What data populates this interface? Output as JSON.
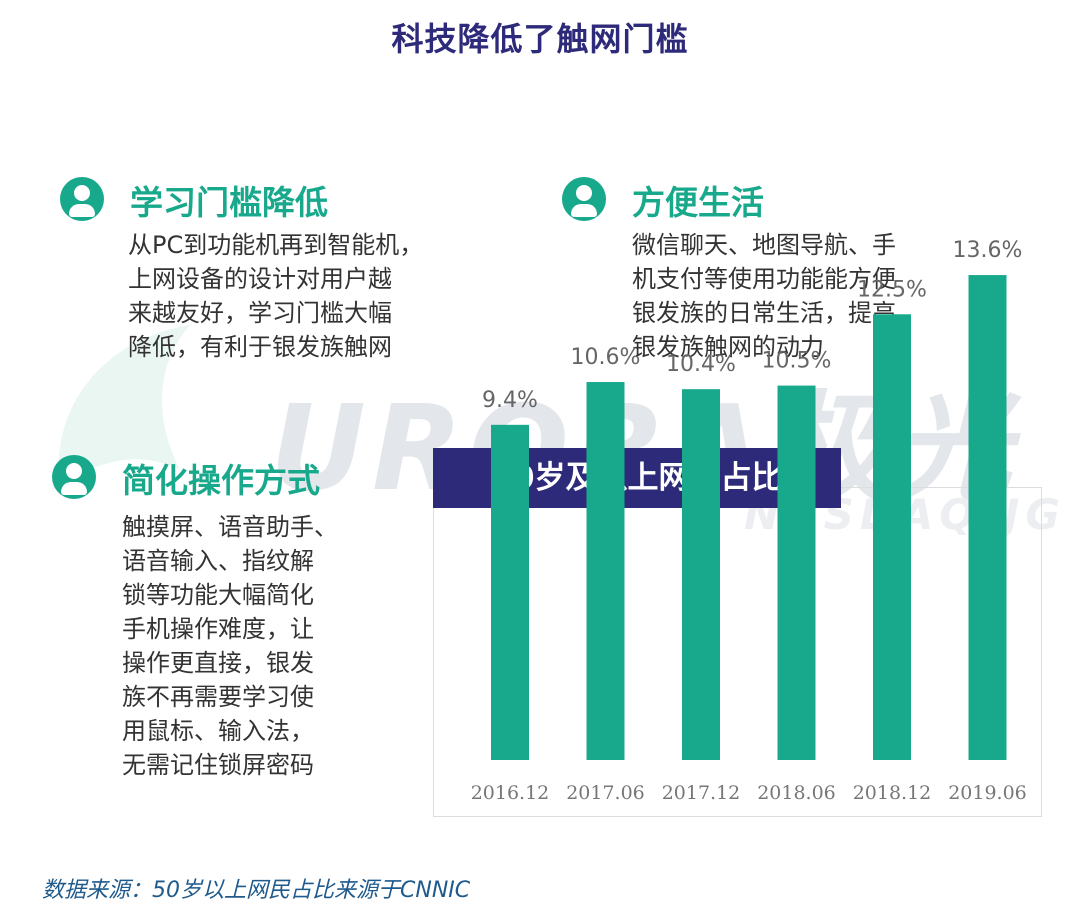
{
  "page": {
    "title": "科技降低了触网门槛",
    "source": "数据来源：50岁以上网民占比来源于CNNIC"
  },
  "watermark": {
    "text": "URORA极光",
    "sub": "NASDAQ:JG"
  },
  "sections": [
    {
      "heading": "学习门槛降低",
      "lines": [
        "从PC到功能机再到智能机，",
        "上网设备的设计对用户越",
        "来越友好，学习门槛大幅",
        "降低，有利于银发族触网"
      ]
    },
    {
      "heading": "方便生活",
      "lines": [
        "微信聊天、地图导航、手",
        "机支付等使用功能能方便",
        "银发族的日常生活，提高",
        "银发族触网的动力"
      ]
    },
    {
      "heading": "简化操作方式",
      "lines": [
        "触摸屏、语音助手、",
        "语音输入、指纹解",
        "锁等功能大幅简化",
        "手机操作难度，让",
        "操作更直接，银发",
        "族不再需要学习使",
        "用鼠标、输入法，",
        "无需记住锁屏密码"
      ]
    }
  ],
  "colors": {
    "accent": "#18a98c",
    "title": "#2e2a7a",
    "bar": "#18a98c"
  },
  "chart_data": {
    "type": "bar",
    "title": "50岁及以上网民占比",
    "categories": [
      "2016.12",
      "2017.06",
      "2017.12",
      "2018.06",
      "2018.12",
      "2019.06"
    ],
    "values": [
      9.4,
      10.6,
      10.4,
      10.5,
      12.5,
      13.6
    ],
    "value_labels": [
      "9.4%",
      "10.6%",
      "10.4%",
      "10.5%",
      "12.5%",
      "13.6%"
    ],
    "unit": "%",
    "ylim": [
      0,
      14
    ],
    "grid": false,
    "legend": "none"
  }
}
